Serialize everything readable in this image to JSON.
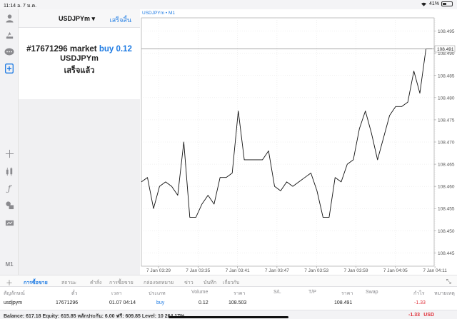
{
  "status_bar": {
    "time": "11:14",
    "date": "อ. 7 ม.ค.",
    "wifi_icon": "wifi-icon",
    "battery": "41%",
    "battery_level": 0.41
  },
  "order_panel": {
    "symbol": "USDJPYm",
    "dropdown_arrow": "▾",
    "done_button": "เสร็จสิ้น",
    "result_prefix": "#17671296 market",
    "result_side": "buy 0.12",
    "result_symbol": "USDJPYm",
    "result_status": "เสร็จแล้ว"
  },
  "left_toolbar": {
    "icons": [
      "user-icon",
      "trade-icon",
      "chat-icon",
      "new-order-icon",
      "crosshair-icon",
      "indicators-icon",
      "function-icon",
      "objects-icon",
      "chart-type-icon"
    ],
    "timeframe": "M1"
  },
  "chart": {
    "label": "USDJPYm • M1",
    "current_price_label": "108.491"
  },
  "chart_data": {
    "type": "line",
    "title": "USDJPYm • M1",
    "x_tick_labels": [
      "7 Jan 03:29",
      "7 Jan 03:35",
      "7 Jan 03:41",
      "7 Jan 03:47",
      "7 Jan 03:53",
      "7 Jan 03:59",
      "7 Jan 04:05",
      "7 Jan 04:11"
    ],
    "y_tick_labels": [
      "108.495",
      "108.490",
      "108.485",
      "108.480",
      "108.475",
      "108.470",
      "108.465",
      "108.460",
      "108.455",
      "108.450",
      "108.445"
    ],
    "ylim": [
      108.442,
      108.498
    ],
    "current_price": 108.491,
    "grid": true,
    "values": [
      108.461,
      108.462,
      108.455,
      108.46,
      108.461,
      108.46,
      108.458,
      108.47,
      108.453,
      108.453,
      108.456,
      108.458,
      108.456,
      108.462,
      108.462,
      108.463,
      108.477,
      108.466,
      108.466,
      108.466,
      108.466,
      108.468,
      108.46,
      108.459,
      108.461,
      108.46,
      108.461,
      108.462,
      108.463,
      108.459,
      108.453,
      108.453,
      108.462,
      108.461,
      108.465,
      108.466,
      108.473,
      108.477,
      108.472,
      108.466,
      108.471,
      108.476,
      108.478,
      108.478,
      108.479,
      108.486,
      108.481,
      108.491,
      108.491
    ]
  },
  "tabs": {
    "items": [
      "การซื้อขาย",
      "สถานะ",
      "คำสั่ง",
      "การซื้อขาย",
      "กล่องจดหมาย",
      "ข่าว",
      "บันทึก",
      "เกี่ยวกับ"
    ],
    "active_index": 0
  },
  "table": {
    "headers": [
      "สัญลักษณ์",
      "ตั๋ว",
      "เวลา",
      "ประเภท",
      "Volume",
      "ราคา",
      "S/L",
      "T/P",
      "ราคา",
      "Swap",
      "กำไร",
      "หมายเหตุ"
    ],
    "rows": [
      {
        "symbol": "usdjpym",
        "ticket": "17671296",
        "time": "01.07 04:14",
        "type": "buy",
        "volume": "0.12",
        "open_price": "108.503",
        "sl": "",
        "tp": "",
        "price": "108.491",
        "swap": "",
        "profit": "-1.33",
        "comment": ""
      }
    ]
  },
  "balance_bar": {
    "text": "Balance: 617.18 Equity: 615.85 หลักประกัน: 6.00 ฟรี: 609.85 Level: 10 264.17%",
    "profit": "-1.33",
    "currency": "USD"
  }
}
